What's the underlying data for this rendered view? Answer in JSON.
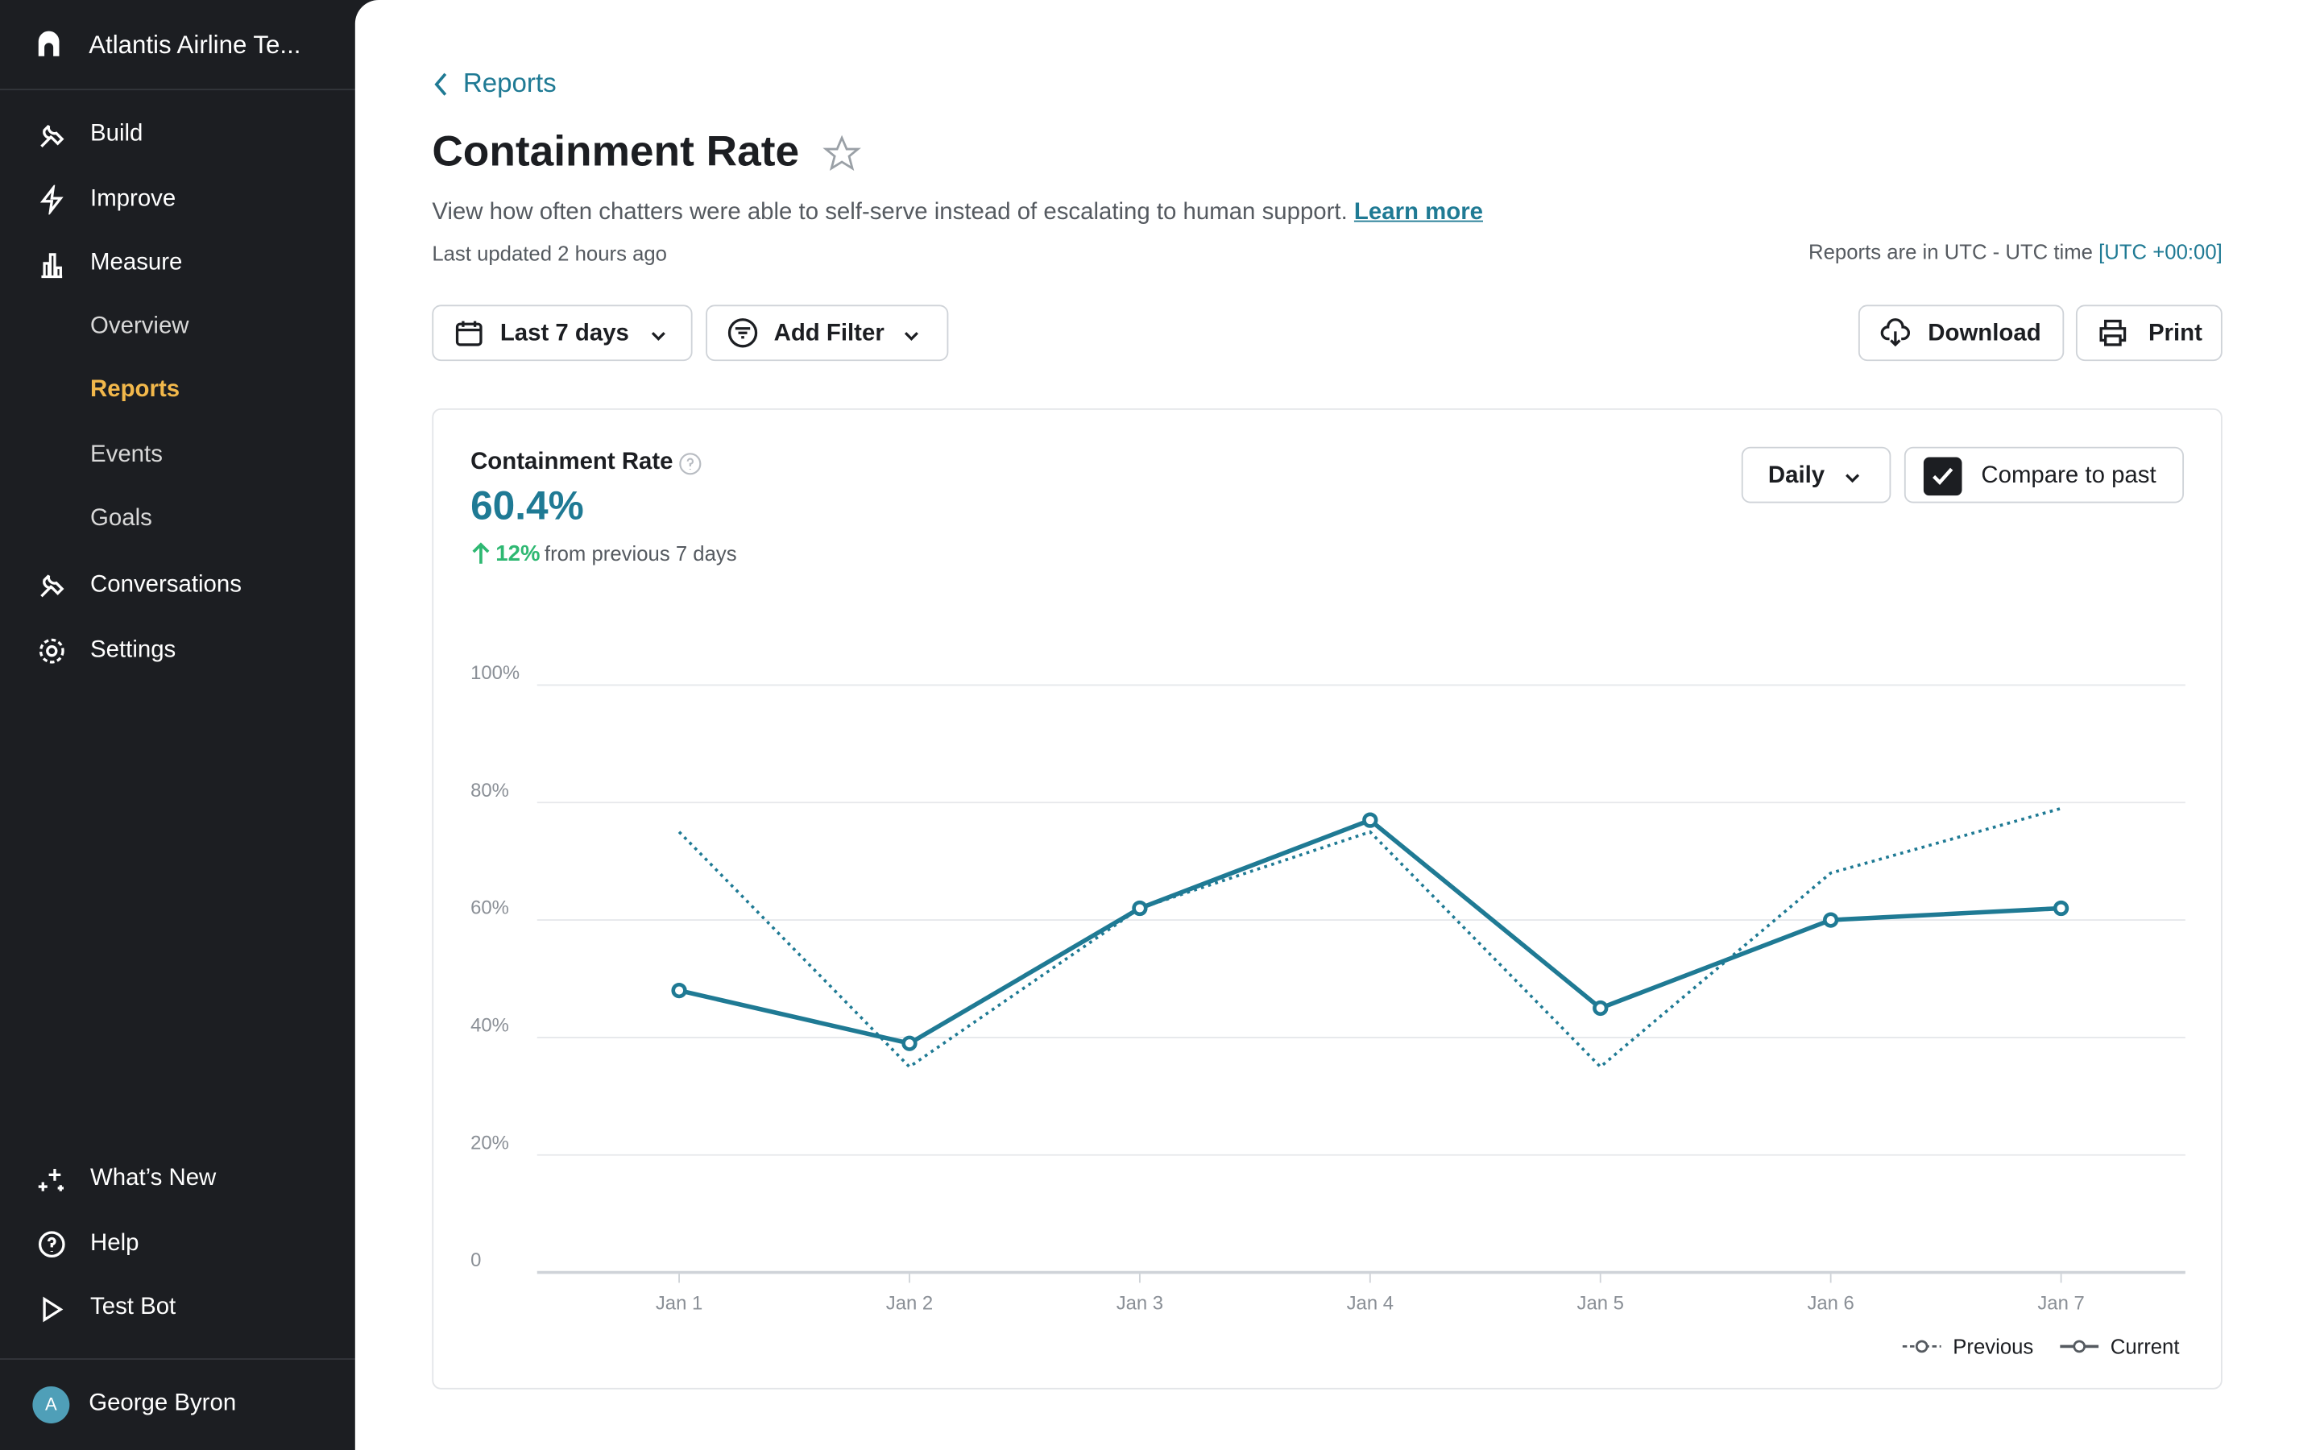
{
  "sidebar": {
    "workspace": "Atlantis Airline Te...",
    "nav": [
      "Build",
      "Improve",
      "Measure"
    ],
    "subnav": [
      "Overview",
      "Reports",
      "Events",
      "Goals"
    ],
    "nav2": [
      "Conversations",
      "Settings"
    ],
    "bottom": [
      "What’s New",
      "Help",
      "Test Bot"
    ],
    "user": {
      "initial": "A",
      "name": "George Byron"
    }
  },
  "header": {
    "back": "Reports",
    "title": "Containment Rate",
    "description": "View how often chatters were able to self-serve instead of escalating to human support.",
    "link": "Learn more",
    "updated": "Last updated 2 hours ago",
    "timezone": "Reports are in UTC - UTC time",
    "timezone_value": "[UTC +00:00]"
  },
  "toolbar": {
    "range": "Last 7 days",
    "filter": "Add Filter",
    "download": "Download",
    "print": "Print"
  },
  "card": {
    "title": "Containment Rate",
    "value": "60.4%",
    "change": "12%",
    "change_text": "from previous 7 days",
    "interval": "Daily",
    "compare": "Compare to past"
  },
  "chart_data": {
    "type": "line",
    "categories": [
      "Jan 1",
      "Jan 2",
      "Jan 3",
      "Jan 4",
      "Jan 5",
      "Jan 6",
      "Jan 7"
    ],
    "series": [
      {
        "name": "Previous",
        "color": "#1f7a94",
        "style": "dotted",
        "values": [
          75,
          35,
          62,
          75,
          35,
          68,
          79
        ]
      },
      {
        "name": "Current",
        "color": "#1f7a94",
        "style": "solid",
        "values": [
          48,
          39,
          62,
          77,
          45,
          60,
          62
        ]
      }
    ],
    "ylim": [
      0,
      100
    ],
    "yticks": [
      0,
      {
        "value": 20,
        "label": "20%"
      },
      {
        "value": 40,
        "label": "40%"
      },
      {
        "value": 60,
        "label": "60%"
      },
      {
        "value": 80,
        "label": "80%"
      },
      {
        "value": 100,
        "label": "100%"
      }
    ],
    "grid": true,
    "legend": "bottom-right"
  }
}
